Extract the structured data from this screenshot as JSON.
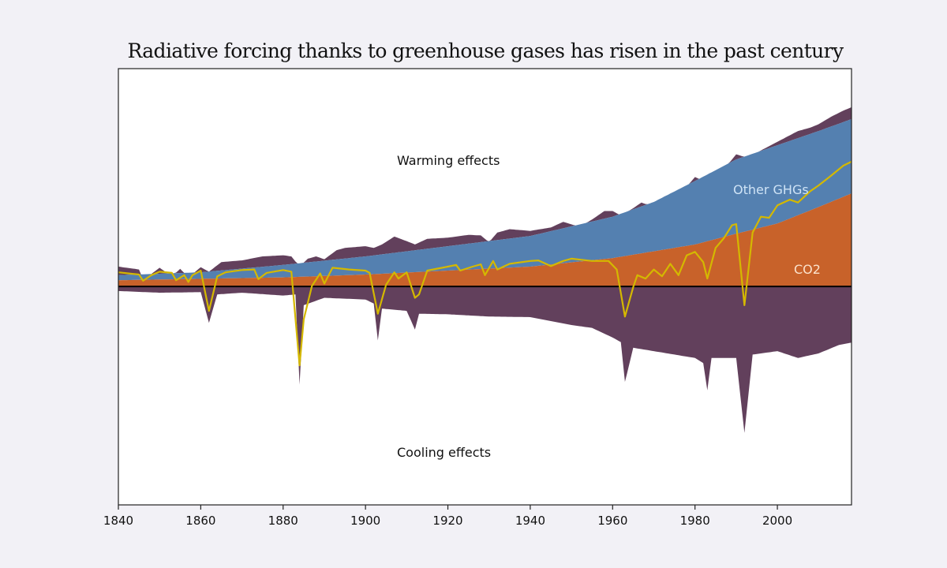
{
  "chart_data": {
    "type": "area",
    "title": "Radiative forcing thanks to greenhouse gases has risen in the past century",
    "xlabel": "",
    "ylabel": "",
    "xlim": [
      1840,
      2018
    ],
    "ylim": [
      -3.85,
      3.84
    ],
    "x_ticks": [
      1840,
      1860,
      1880,
      1900,
      1920,
      1940,
      1960,
      1980,
      2000
    ],
    "grid": false,
    "annotations": {
      "warming": "Warming effects",
      "cooling": "Cooling effects",
      "other_ghgs": "Other GHGs",
      "co2": "CO2"
    },
    "colors": {
      "co2": "#c8622a",
      "other_ghgs": "#5480b0",
      "other_effects": "#62405c",
      "net": "#d4b800",
      "zero_line": "#000000",
      "background": "#f2f1f6",
      "plot_bg": "#ffffff"
    },
    "series": [
      {
        "name": "CO2",
        "kind": "stacked-area-top",
        "x": [
          1840,
          1880,
          1900,
          1920,
          1940,
          1960,
          1980,
          1990,
          2000,
          2010,
          2018
        ],
        "values": [
          0.11,
          0.16,
          0.21,
          0.28,
          0.35,
          0.5,
          0.74,
          0.93,
          1.11,
          1.4,
          1.64
        ]
      },
      {
        "name": "Other GHGs",
        "kind": "stacked-area-top",
        "x": [
          1840,
          1860,
          1880,
          1900,
          1920,
          1940,
          1960,
          1970,
          1980,
          1990,
          2000,
          2010,
          2018
        ],
        "values": [
          0.2,
          0.25,
          0.38,
          0.53,
          0.71,
          0.89,
          1.23,
          1.49,
          1.86,
          2.24,
          2.49,
          2.74,
          2.95
        ]
      },
      {
        "name": "Total positive forcing",
        "kind": "warming-top",
        "x": [
          1840,
          1845,
          1846,
          1850,
          1853,
          1855,
          1857,
          1860,
          1862,
          1865,
          1870,
          1875,
          1880,
          1882,
          1884,
          1886,
          1888,
          1890,
          1893,
          1895,
          1900,
          1902,
          1904,
          1907,
          1910,
          1912,
          1915,
          1920,
          1925,
          1928,
          1930,
          1932,
          1935,
          1940,
          1945,
          1948,
          1952,
          1955,
          1958,
          1960,
          1962,
          1965,
          1967,
          1970,
          1972,
          1975,
          1978,
          1980,
          1982,
          1985,
          1988,
          1990,
          1993,
          1995,
          2000,
          2005,
          2008,
          2010,
          2013,
          2016,
          2018
        ],
        "values": [
          0.35,
          0.3,
          0.11,
          0.33,
          0.18,
          0.31,
          0.16,
          0.34,
          0.26,
          0.43,
          0.46,
          0.53,
          0.55,
          0.53,
          0.35,
          0.49,
          0.53,
          0.48,
          0.64,
          0.68,
          0.71,
          0.68,
          0.74,
          0.88,
          0.8,
          0.74,
          0.84,
          0.86,
          0.91,
          0.9,
          0.78,
          0.95,
          1.01,
          0.98,
          1.04,
          1.14,
          1.05,
          1.18,
          1.33,
          1.33,
          1.25,
          1.38,
          1.48,
          1.4,
          1.56,
          1.66,
          1.76,
          1.93,
          1.86,
          2.05,
          2.15,
          2.33,
          2.26,
          2.36,
          2.55,
          2.74,
          2.8,
          2.86,
          2.99,
          3.1,
          3.16
        ]
      },
      {
        "name": "Cooling effects",
        "kind": "cooling-bottom",
        "x": [
          1840,
          1850,
          1860,
          1862,
          1864,
          1870,
          1880,
          1883,
          1884,
          1885,
          1890,
          1900,
          1902,
          1903,
          1904,
          1910,
          1912,
          1913,
          1920,
          1930,
          1940,
          1950,
          1955,
          1960,
          1962,
          1963,
          1965,
          1970,
          1975,
          1980,
          1982,
          1983,
          1984,
          1990,
          1992,
          1994,
          2000,
          2005,
          2010,
          2015,
          2018
        ],
        "values": [
          -0.08,
          -0.11,
          -0.1,
          -0.64,
          -0.14,
          -0.11,
          -0.16,
          -0.14,
          -1.73,
          -0.33,
          -0.2,
          -0.23,
          -0.3,
          -0.95,
          -0.39,
          -0.43,
          -0.76,
          -0.48,
          -0.49,
          -0.53,
          -0.54,
          -0.68,
          -0.73,
          -0.9,
          -0.98,
          -1.68,
          -1.08,
          -1.14,
          -1.2,
          -1.26,
          -1.35,
          -1.83,
          -1.26,
          -1.26,
          -2.58,
          -1.2,
          -1.14,
          -1.26,
          -1.18,
          -1.03,
          -0.99
        ]
      },
      {
        "name": "Net forcing",
        "kind": "line",
        "x": [
          1840,
          1845,
          1846,
          1848,
          1850,
          1853,
          1854,
          1856,
          1857,
          1858,
          1860,
          1862,
          1864,
          1866,
          1870,
          1873,
          1874,
          1876,
          1880,
          1882,
          1884,
          1885,
          1887,
          1889,
          1890,
          1892,
          1896,
          1900,
          1901,
          1903,
          1905,
          1907,
          1908,
          1910,
          1912,
          1913,
          1915,
          1920,
          1922,
          1923,
          1926,
          1928,
          1929,
          1931,
          1932,
          1935,
          1940,
          1942,
          1945,
          1948,
          1950,
          1955,
          1959,
          1961,
          1963,
          1965,
          1966,
          1968,
          1970,
          1972,
          1974,
          1976,
          1978,
          1980,
          1982,
          1983,
          1985,
          1987,
          1989,
          1990,
          1992,
          1994,
          1996,
          1998,
          2000,
          2003,
          2005,
          2008,
          2010,
          2013,
          2016,
          2018
        ],
        "values": [
          0.25,
          0.21,
          0.1,
          0.2,
          0.26,
          0.24,
          0.11,
          0.2,
          0.08,
          0.2,
          0.28,
          -0.43,
          0.18,
          0.25,
          0.29,
          0.3,
          0.13,
          0.24,
          0.29,
          0.26,
          -1.39,
          -0.58,
          0.01,
          0.23,
          0.05,
          0.33,
          0.3,
          0.28,
          0.24,
          -0.48,
          0.03,
          0.25,
          0.14,
          0.25,
          -0.2,
          -0.14,
          0.28,
          0.35,
          0.38,
          0.28,
          0.35,
          0.39,
          0.2,
          0.45,
          0.3,
          0.4,
          0.45,
          0.46,
          0.36,
          0.45,
          0.49,
          0.45,
          0.45,
          0.3,
          -0.53,
          -0.01,
          0.2,
          0.14,
          0.3,
          0.18,
          0.4,
          0.2,
          0.55,
          0.61,
          0.43,
          0.14,
          0.68,
          0.85,
          1.08,
          1.1,
          -0.33,
          0.95,
          1.23,
          1.21,
          1.43,
          1.53,
          1.48,
          1.68,
          1.78,
          1.95,
          2.13,
          2.2
        ]
      }
    ]
  }
}
